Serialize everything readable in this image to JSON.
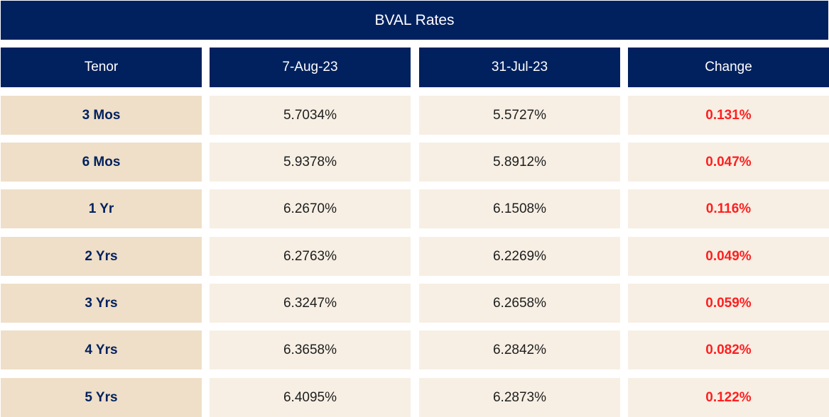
{
  "chart_data": {
    "type": "table",
    "title": "BVAL Rates",
    "columns": [
      "Tenor",
      "7-Aug-23",
      "31-Jul-23",
      "Change"
    ],
    "rows": [
      [
        "3 Mos",
        "5.7034%",
        "5.5727%",
        "0.131%"
      ],
      [
        "6 Mos",
        "5.9378%",
        "5.8912%",
        "0.047%"
      ],
      [
        "1 Yr",
        "6.2670%",
        "6.1508%",
        "0.116%"
      ],
      [
        "2 Yrs",
        "6.2763%",
        "6.2269%",
        "0.049%"
      ],
      [
        "3 Yrs",
        "6.3247%",
        "6.2658%",
        "0.059%"
      ],
      [
        "4 Yrs",
        "6.3658%",
        "6.2842%",
        "0.082%"
      ],
      [
        "5 Yrs",
        "6.4095%",
        "6.2873%",
        "0.122%"
      ]
    ]
  },
  "colors": {
    "header_bg": "#00215e",
    "tenor_bg": "#efdfc8",
    "value_bg": "#f7efe4",
    "change_text": "#ff1f1f",
    "tenor_text": "#00215e"
  }
}
